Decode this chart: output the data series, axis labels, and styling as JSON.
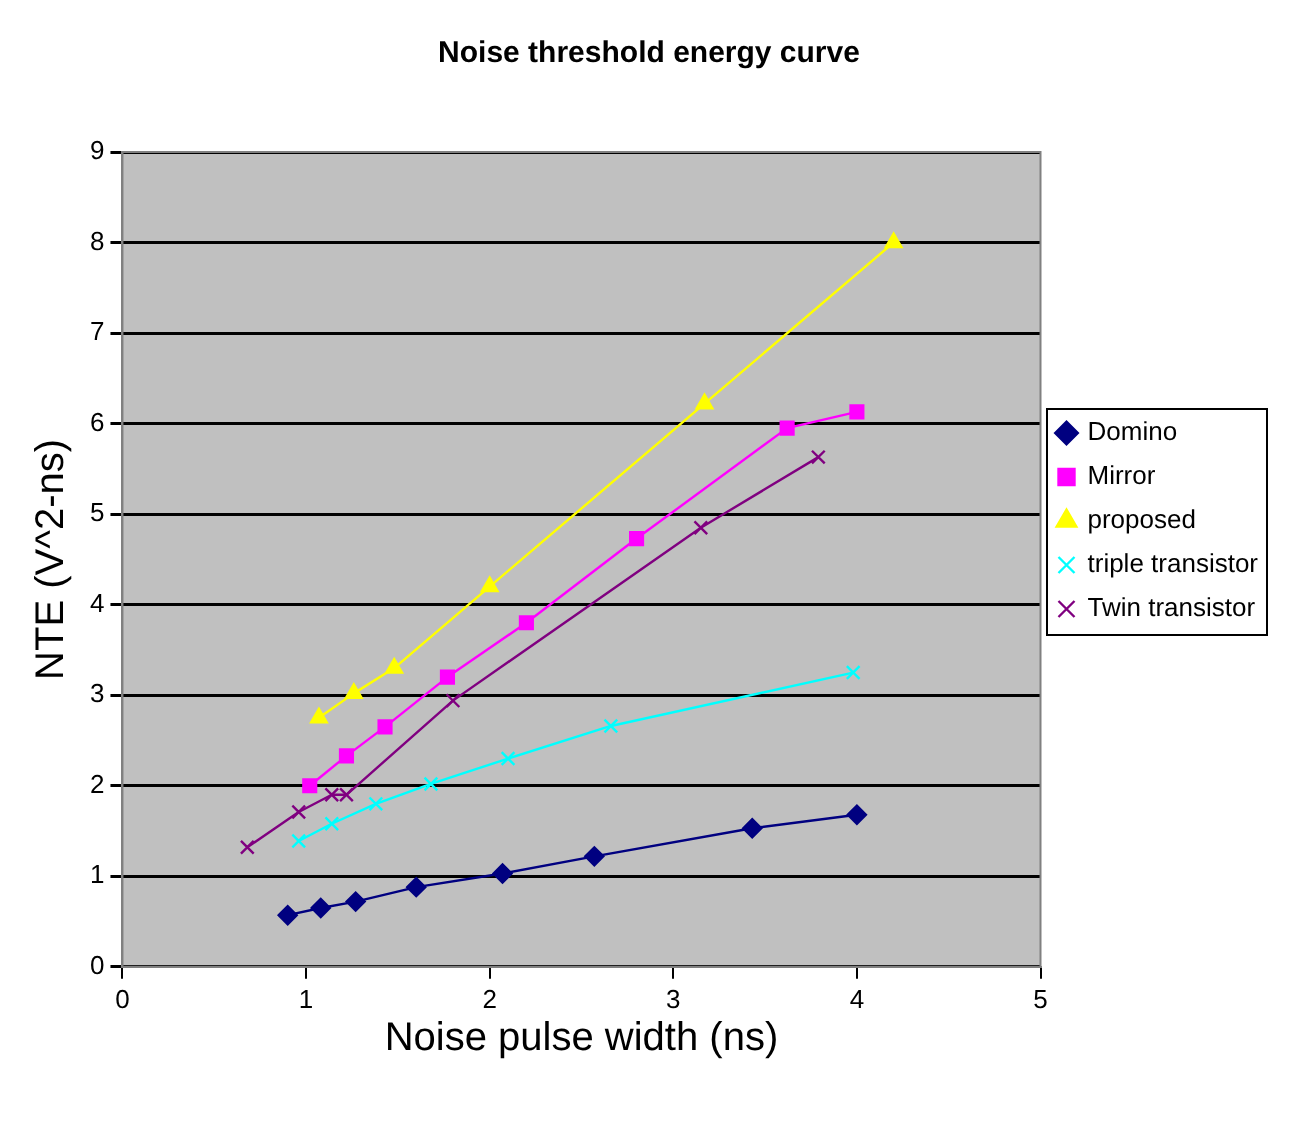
{
  "chart_data": {
    "type": "line",
    "title": "Noise threshold energy curve",
    "xlabel": "Noise pulse width (ns)",
    "ylabel": "NTE (V^2-ns)",
    "xlim": [
      0,
      5
    ],
    "xticks": [
      0,
      1,
      2,
      3,
      4,
      5
    ],
    "ylim": [
      0,
      9
    ],
    "yticks": [
      0,
      1,
      2,
      3,
      4,
      5,
      6,
      7,
      8,
      9
    ],
    "grid": "y",
    "legend": "right",
    "line_style": "solid",
    "series": [
      {
        "name": "Domino",
        "color": "#000080",
        "marker": "diamond",
        "x": [
          0.9,
          1.08,
          1.27,
          1.6,
          2.07,
          2.57,
          3.43,
          4.0
        ],
        "values": [
          0.57,
          0.65,
          0.72,
          0.88,
          1.03,
          1.22,
          1.53,
          1.68
        ]
      },
      {
        "name": "Mirror",
        "color": "#ff00ff",
        "marker": "square",
        "x": [
          1.02,
          1.22,
          1.43,
          1.77,
          2.2,
          2.8,
          3.62,
          4.0
        ],
        "values": [
          2.0,
          2.33,
          2.65,
          3.2,
          3.8,
          4.73,
          5.95,
          6.13
        ]
      },
      {
        "name": "proposed",
        "color": "#ffff00",
        "marker": "triangle",
        "x": [
          1.07,
          1.26,
          1.48,
          2.0,
          3.17,
          4.2
        ],
        "values": [
          2.75,
          3.02,
          3.3,
          4.2,
          6.22,
          8.0
        ]
      },
      {
        "name": "triple transistor",
        "color": "#00ffff",
        "marker": "cross",
        "x": [
          0.96,
          1.14,
          1.38,
          1.68,
          2.1,
          2.66,
          3.98
        ],
        "values": [
          1.39,
          1.58,
          1.8,
          2.02,
          2.3,
          2.66,
          3.25
        ]
      },
      {
        "name": "Twin transistor",
        "color": "#800080",
        "marker": "cross",
        "x": [
          0.68,
          0.96,
          1.14,
          1.22,
          1.8,
          3.15,
          3.79
        ],
        "values": [
          1.32,
          1.71,
          1.9,
          1.9,
          2.94,
          4.85,
          5.63
        ]
      }
    ]
  }
}
